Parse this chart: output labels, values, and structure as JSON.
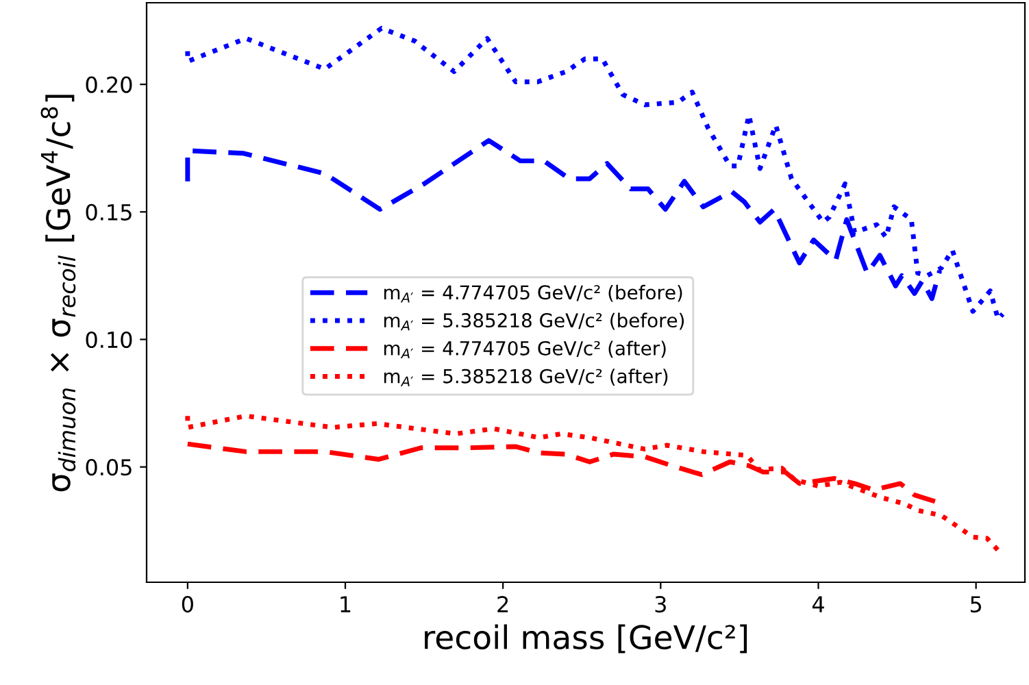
{
  "chart_data": {
    "type": "line",
    "xlabel": "recoil mass [GeV/c²]",
    "ylabel": "σ$_{dimuon}$ × σ$_{recoil}$ [GeV$^{4}$/c$^{8}$]",
    "xlim": [
      -0.26,
      5.31
    ],
    "ylim": [
      0.0048,
      0.232
    ],
    "xticks": [
      0,
      1,
      2,
      3,
      4,
      5
    ],
    "yticks": [
      0.05,
      {
        "value": 0.1,
        "label": "0.10"
      },
      0.15,
      {
        "value": 0.2,
        "label": "0.20"
      }
    ],
    "grid": false,
    "legend": "center",
    "series": [
      {
        "name": "m$_{A′}$ = 4.774705 GeV/c² (before)",
        "color": "#0000ff",
        "line_style": "dashed",
        "x": [
          0,
          0,
          0.35,
          0.87,
          1.22,
          1.5,
          1.91,
          2.11,
          2.26,
          2.42,
          2.55,
          2.66,
          2.81,
          2.92,
          3.03,
          3.15,
          3.27,
          3.45,
          3.53,
          3.63,
          3.72,
          3.88,
          3.97,
          4.11,
          4.18,
          4.31,
          4.39,
          4.49,
          4.53,
          4.61,
          4.66,
          4.72,
          4.77
        ],
        "values": [
          0.162,
          0.174,
          0.173,
          0.165,
          0.151,
          0.161,
          0.178,
          0.17,
          0.17,
          0.163,
          0.163,
          0.169,
          0.159,
          0.159,
          0.151,
          0.162,
          0.152,
          0.158,
          0.154,
          0.146,
          0.151,
          0.13,
          0.139,
          0.131,
          0.147,
          0.126,
          0.133,
          0.121,
          0.125,
          0.118,
          0.123,
          0.116,
          0.127
        ]
      },
      {
        "name": "m$_{A′}$ = 5.385218 GeV/c² (before)",
        "color": "#0000ff",
        "line_style": "dotted",
        "x": [
          0,
          0,
          0.37,
          0.87,
          1.23,
          1.44,
          1.69,
          1.9,
          2.08,
          2.22,
          2.4,
          2.52,
          2.63,
          2.76,
          2.9,
          3.11,
          3.2,
          3.3,
          3.44,
          3.49,
          3.56,
          3.63,
          3.73,
          3.83,
          4.03,
          4.07,
          4.17,
          4.23,
          4.37,
          4.43,
          4.48,
          4.59,
          4.63,
          4.69,
          4.78,
          4.85,
          4.98,
          5.09,
          5.14,
          5.17
        ],
        "values": [
          0.213,
          0.209,
          0.218,
          0.206,
          0.222,
          0.217,
          0.205,
          0.218,
          0.201,
          0.201,
          0.205,
          0.21,
          0.21,
          0.196,
          0.192,
          0.193,
          0.197,
          0.183,
          0.168,
          0.168,
          0.188,
          0.167,
          0.184,
          0.163,
          0.146,
          0.148,
          0.161,
          0.142,
          0.145,
          0.14,
          0.152,
          0.147,
          0.126,
          0.125,
          0.128,
          0.135,
          0.111,
          0.119,
          0.108,
          0.11
        ]
      },
      {
        "name": "m$_{A′}$ = 4.774705 GeV/c² (after)",
        "color": "#ff0000",
        "line_style": "dashed",
        "x": [
          0,
          0.37,
          0.87,
          1.21,
          1.48,
          1.77,
          2.08,
          2.23,
          2.4,
          2.55,
          2.7,
          2.9,
          3.07,
          3.26,
          3.44,
          3.56,
          3.65,
          3.79,
          3.88,
          4.1,
          4.23,
          4.35,
          4.52,
          4.61,
          4.74
        ],
        "values": [
          0.059,
          0.056,
          0.056,
          0.053,
          0.0575,
          0.0575,
          0.058,
          0.0555,
          0.055,
          0.052,
          0.055,
          0.054,
          0.0505,
          0.047,
          0.052,
          0.0505,
          0.048,
          0.048,
          0.0435,
          0.0455,
          0.0435,
          0.041,
          0.0435,
          0.039,
          0.0365
        ]
      },
      {
        "name": "m$_{A′}$ = 5.385218 GeV/c² (after)",
        "color": "#ff0000",
        "line_style": "dotted",
        "x": [
          0,
          0,
          0.37,
          0.92,
          1.2,
          1.7,
          1.94,
          2.23,
          2.37,
          2.55,
          2.9,
          3.04,
          3.27,
          3.55,
          3.62,
          3.77,
          3.85,
          4.0,
          4.14,
          4.4,
          4.55,
          4.63,
          4.78,
          4.98,
          5.07,
          5.16
        ],
        "values": [
          0.07,
          0.0655,
          0.07,
          0.0655,
          0.067,
          0.063,
          0.065,
          0.0615,
          0.063,
          0.0615,
          0.057,
          0.0585,
          0.056,
          0.0545,
          0.049,
          0.0495,
          0.045,
          0.0425,
          0.044,
          0.038,
          0.0355,
          0.033,
          0.031,
          0.0225,
          0.022,
          0.016
        ]
      }
    ]
  }
}
